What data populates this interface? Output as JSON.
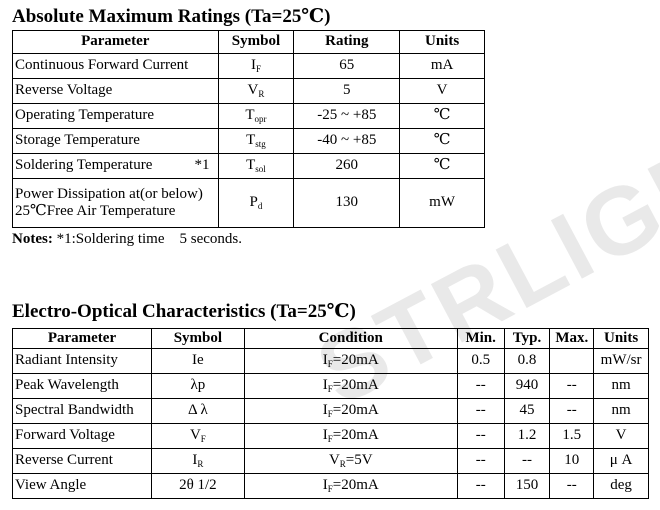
{
  "watermark": "STRLIGHT",
  "table1": {
    "title": "Absolute Maximum Ratings (Ta=25℃)",
    "headers": {
      "parameter": "Parameter",
      "symbol": "Symbol",
      "rating": "Rating",
      "units": "Units"
    },
    "rows": [
      {
        "parameter": "Continuous Forward Current",
        "symbol_main": "I",
        "symbol_sub": "F",
        "rating": "65",
        "units": "mA"
      },
      {
        "parameter": "Reverse Voltage",
        "symbol_main": "V",
        "symbol_sub": "R",
        "rating": "5",
        "units": "V"
      },
      {
        "parameter": "Operating Temperature",
        "symbol_main": "T",
        "symbol_sub": "opr",
        "rating": "-25 ~ +85",
        "units": "℃"
      },
      {
        "parameter": "Storage Temperature",
        "symbol_main": "T",
        "symbol_sub": "stg",
        "rating": "-40 ~ +85",
        "units": "℃"
      },
      {
        "parameter": "Soldering Temperature",
        "note_mark": "*1",
        "symbol_main": "T",
        "symbol_sub": "sol",
        "rating": "260",
        "units": "℃"
      },
      {
        "parameter_line1": "Power Dissipation at(or below)",
        "parameter_line2": "25℃Free Air Temperature",
        "symbol_main": "P",
        "symbol_sub": "d",
        "rating": "130",
        "units": "mW"
      }
    ],
    "notes_label": "Notes:",
    "notes_text": " *1:Soldering time    5 seconds."
  },
  "table2": {
    "title": "Electro-Optical Characteristics (Ta=25℃)",
    "headers": {
      "parameter": "Parameter",
      "symbol": "Symbol",
      "condition": "Condition",
      "min": "Min.",
      "typ": "Typ.",
      "max": "Max.",
      "units": "Units"
    },
    "rows": [
      {
        "parameter": "Radiant Intensity",
        "symbol": "Ie",
        "cond_main": "I",
        "cond_sub": "F",
        "cond_rest": "=20mA",
        "min": "0.5",
        "typ": "0.8",
        "max": "",
        "units": "mW/sr"
      },
      {
        "parameter": "Peak Wavelength",
        "symbol": "λp",
        "cond_main": "I",
        "cond_sub": "F",
        "cond_rest": "=20mA",
        "min": "--",
        "typ": "940",
        "max": "--",
        "units": "nm"
      },
      {
        "parameter": "Spectral Bandwidth",
        "symbol": "Δ λ",
        "cond_main": "I",
        "cond_sub": "F",
        "cond_rest": "=20mA",
        "min": "--",
        "typ": "45",
        "max": "--",
        "units": "nm"
      },
      {
        "parameter": "Forward Voltage",
        "symbol": "V",
        "symbol_sub": "F",
        "cond_main": "I",
        "cond_sub": "F",
        "cond_rest": "=20mA",
        "min": "--",
        "typ": "1.2",
        "max": "1.5",
        "units": "V"
      },
      {
        "parameter": "Reverse Current",
        "symbol": "I",
        "symbol_sub": "R",
        "cond_main": "V",
        "cond_sub": "R",
        "cond_rest": "=5V",
        "min": "--",
        "typ": "--",
        "max": "10",
        "units": "μ A"
      },
      {
        "parameter": "View Angle",
        "symbol": "2θ 1/2",
        "cond_main": "I",
        "cond_sub": "F",
        "cond_rest": "=20mA",
        "min": "--",
        "typ": "150",
        "max": "--",
        "units": "deg"
      }
    ]
  }
}
